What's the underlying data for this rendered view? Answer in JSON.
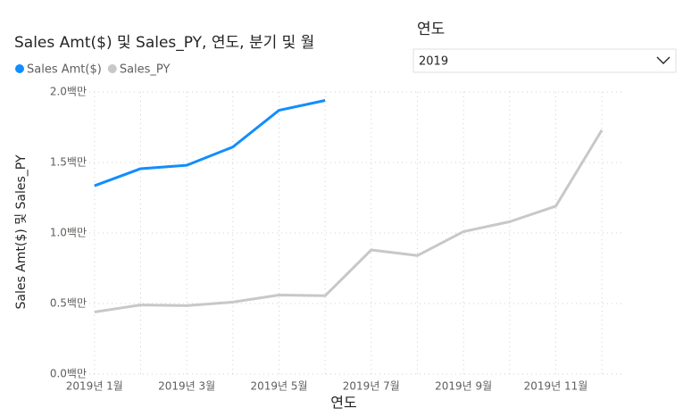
{
  "chart_data": {
    "type": "line",
    "title": "Sales Amt($) 및 Sales_PY, 연도, 분기 및 월",
    "x_label": "연도",
    "y_label": "Sales Amt($) 및 Sales_PY",
    "categories": [
      "2019년 1월",
      null,
      "2019년 3월",
      null,
      "2019년 5월",
      null,
      "2019년 7월",
      null,
      "2019년 9월",
      null,
      "2019년 11월",
      null
    ],
    "series": [
      {
        "name": "Sales Amt($)",
        "color": "#118dff",
        "values": [
          1.335,
          1.456,
          1.48,
          1.61,
          1.87,
          1.94,
          null,
          null,
          null,
          null,
          null,
          null
        ]
      },
      {
        "name": "Sales_PY",
        "color": "#c8c8c8",
        "values": [
          0.44,
          0.49,
          0.485,
          0.51,
          0.56,
          0.555,
          0.88,
          0.84,
          1.01,
          1.08,
          1.19,
          1.73
        ]
      }
    ],
    "ylim": [
      0,
      2.0
    ],
    "yticks": [
      {
        "value": 0,
        "label": "0.0백만"
      },
      {
        "value": 0.5,
        "label": "0.5백만"
      },
      {
        "value": 1.0,
        "label": "1.0백만"
      },
      {
        "value": 1.5,
        "label": "1.5백만"
      },
      {
        "value": 2.0,
        "label": "2.0백만"
      }
    ],
    "grid": true,
    "legend": "top-left"
  },
  "slicer": {
    "title": "연도",
    "value": "2019"
  }
}
